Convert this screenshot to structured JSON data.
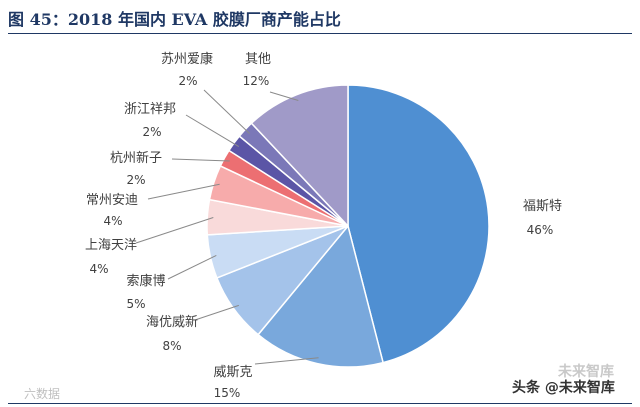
{
  "figure": {
    "title": "图 45：2018 年国内 EVA 胶膜厂商产能占比"
  },
  "chart_data": {
    "type": "pie",
    "title": "图 45：2018 年国内 EVA 胶膜厂商产能占比",
    "start": "12 o'clock",
    "direction": "clockwise",
    "slices": [
      {
        "label": "福斯特",
        "value": 46,
        "value_label": "46%",
        "color": "#4f8fd2"
      },
      {
        "label": "威斯克",
        "value": 15,
        "value_label": "15%",
        "color": "#79a8dc"
      },
      {
        "label": "海优威新",
        "value": 8,
        "value_label": "8%",
        "color": "#a4c3ea"
      },
      {
        "label": "索康博",
        "value": 5,
        "value_label": "5%",
        "color": "#c9dcf4"
      },
      {
        "label": "上海天洋",
        "value": 4,
        "value_label": "4%",
        "color": "#f9dada"
      },
      {
        "label": "常州安迪",
        "value": 4,
        "value_label": "4%",
        "color": "#f7abab"
      },
      {
        "label": "杭州新子",
        "value": 2,
        "value_label": "2%",
        "color": "#ec6f72"
      },
      {
        "label": "浙江祥邦",
        "value": 2,
        "value_label": "2%",
        "color": "#5b55a6"
      },
      {
        "label": "苏州爱康",
        "value": 2,
        "value_label": "2%",
        "color": "#7b78b8"
      },
      {
        "label": "其他",
        "value": 12,
        "value_label": "12%",
        "color": "#a09ac8"
      }
    ]
  },
  "watermarks": {
    "left": "六数据",
    "right_prefix": "头条",
    "right_handle": "@未来智库",
    "right_top": "未来智库"
  }
}
